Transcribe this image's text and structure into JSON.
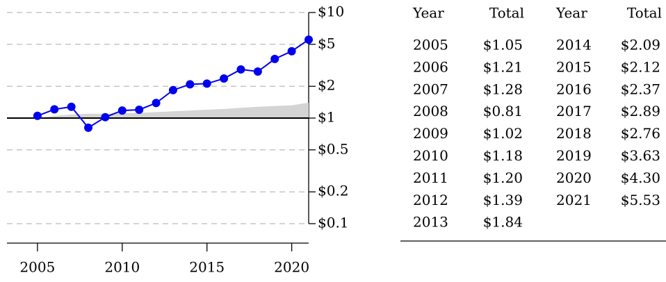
{
  "chart_data": {
    "type": "line",
    "log_y": true,
    "grid": true,
    "x": [
      2005,
      2006,
      2007,
      2008,
      2009,
      2010,
      2011,
      2012,
      2013,
      2014,
      2015,
      2016,
      2017,
      2018,
      2019,
      2020,
      2021
    ],
    "xlim": [
      2003.2,
      2021
    ],
    "xticks": [
      2005,
      2010,
      2015,
      2020
    ],
    "ylim": [
      0.1,
      10
    ],
    "yticks": [
      {
        "value": 10,
        "label": "$10"
      },
      {
        "value": 5,
        "label": "$5"
      },
      {
        "value": 2,
        "label": "$2"
      },
      {
        "value": 1,
        "label": "$1"
      },
      {
        "value": 0.5,
        "label": "$0.5"
      },
      {
        "value": 0.2,
        "label": "$0.2"
      },
      {
        "value": 0.1,
        "label": "$0.1"
      }
    ],
    "baseline": 1,
    "series": [
      {
        "kind": "area",
        "color": "#d4d4d4",
        "values": [
          1.0,
          1.05,
          1.08,
          1.1,
          1.1,
          1.11,
          1.12,
          1.14,
          1.16,
          1.18,
          1.2,
          1.22,
          1.25,
          1.28,
          1.3,
          1.32,
          1.4
        ]
      },
      {
        "kind": "line",
        "color": "#0000ee",
        "values": [
          1.05,
          1.21,
          1.28,
          0.81,
          1.02,
          1.18,
          1.2,
          1.39,
          1.84,
          2.09,
          2.12,
          2.37,
          2.89,
          2.76,
          3.63,
          4.3,
          5.53
        ]
      }
    ]
  },
  "table": {
    "header": [
      "Year",
      "Total",
      "Year",
      "Total"
    ],
    "rows": [
      [
        "2005",
        "$1.05",
        "2014",
        "$2.09"
      ],
      [
        "2006",
        "$1.21",
        "2015",
        "$2.12"
      ],
      [
        "2007",
        "$1.28",
        "2016",
        "$2.37"
      ],
      [
        "2008",
        "$0.81",
        "2017",
        "$2.89"
      ],
      [
        "2009",
        "$1.02",
        "2018",
        "$2.76"
      ],
      [
        "2010",
        "$1.18",
        "2019",
        "$3.63"
      ],
      [
        "2011",
        "$1.20",
        "2020",
        "$4.30"
      ],
      [
        "2012",
        "$1.39",
        "2021",
        "$5.53"
      ],
      [
        "2013",
        "$1.84"
      ]
    ]
  }
}
